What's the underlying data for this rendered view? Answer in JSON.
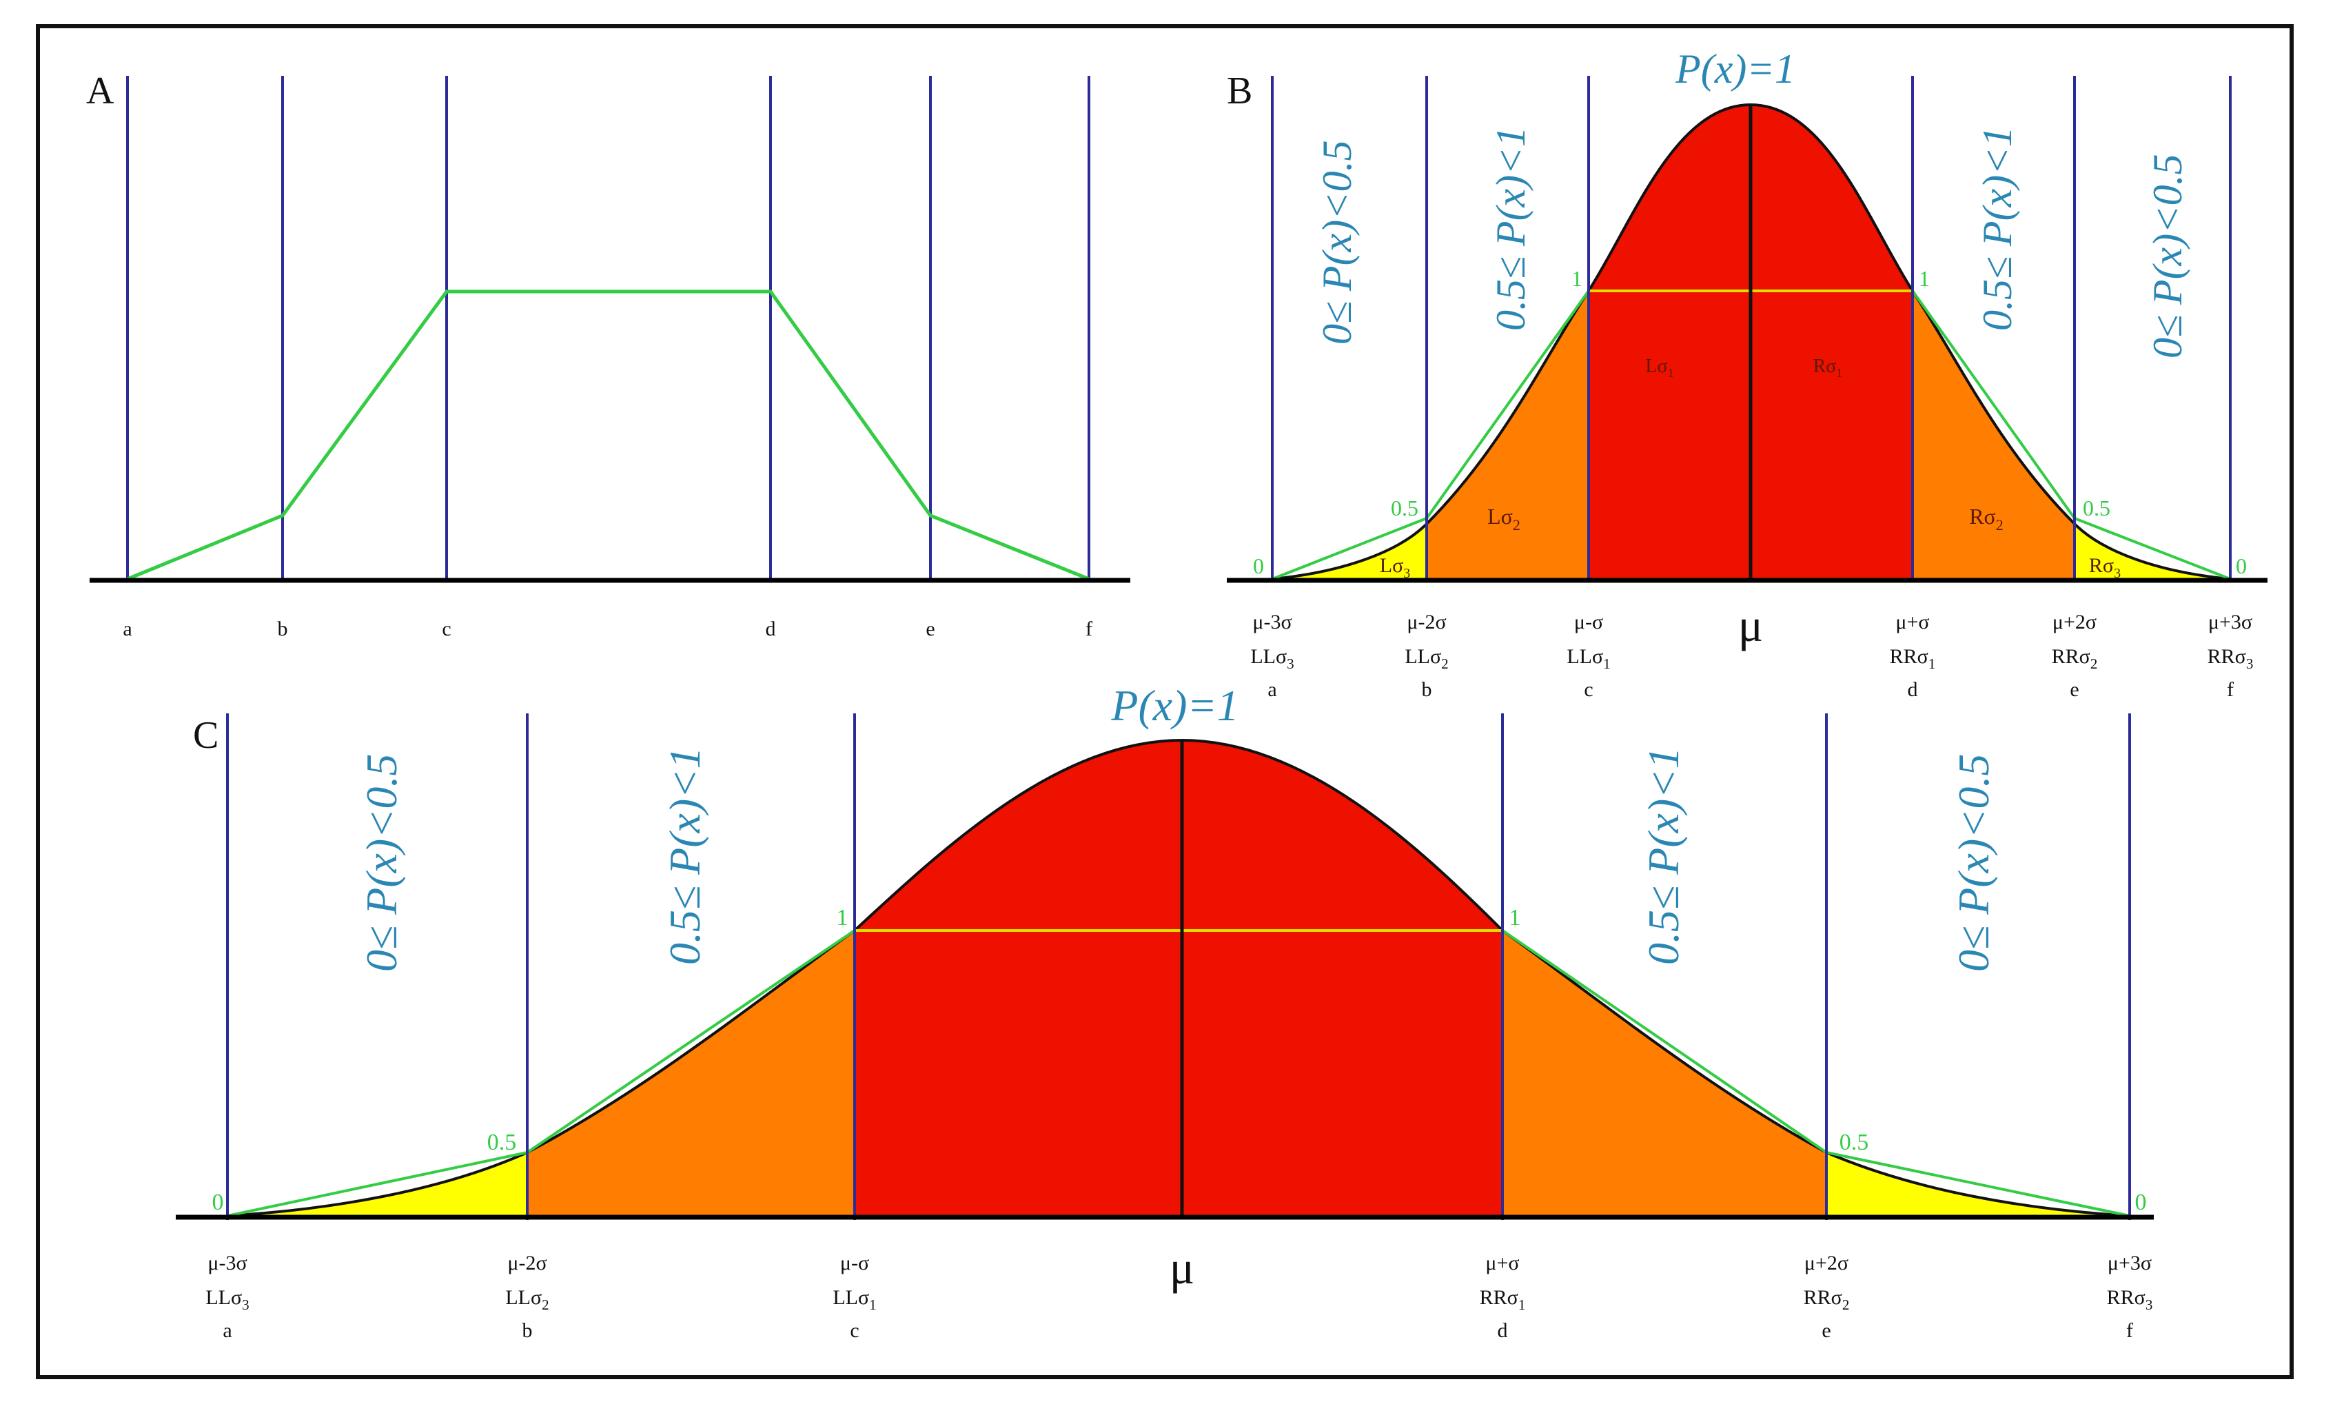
{
  "panels": {
    "A": {
      "letter": "A",
      "ticks": [
        "a",
        "b",
        "c",
        "d",
        "e",
        "f"
      ],
      "membership_profile": [
        0,
        0.14,
        0.6,
        0.6,
        0.14,
        0
      ]
    },
    "B": {
      "letter": "B",
      "mu": "μ",
      "peak_label": "P(x)=1",
      "ticks": [
        {
          "l1": "μ-3σ",
          "l2": "LLσ",
          "s2": "3",
          "l3": "a"
        },
        {
          "l1": "μ-2σ",
          "l2": "LLσ",
          "s2": "2",
          "l3": "b"
        },
        {
          "l1": "μ-σ",
          "l2": "LLσ",
          "s2": "1",
          "l3": "c"
        },
        {
          "l1": "μ+σ",
          "l2": "RRσ",
          "s2": "1",
          "l3": "d"
        },
        {
          "l1": "μ+2σ",
          "l2": "RRσ",
          "s2": "2",
          "l3": "e"
        },
        {
          "l1": "μ+3σ",
          "l2": "RRσ",
          "s2": "3",
          "l3": "f"
        }
      ],
      "band_labels": [
        "0≤ P(x)<0.5",
        "0.5≤ P(x)<1",
        "0.5≤ P(x)<1",
        "0≤ P(x)<0.5"
      ],
      "point_labels": [
        "0",
        "0.5",
        "1",
        "1",
        "0.5",
        "0"
      ],
      "regions": [
        {
          "t": "Lσ",
          "s": "3"
        },
        {
          "t": "Lσ",
          "s": "2"
        },
        {
          "t": "Lσ",
          "s": "1"
        },
        {
          "t": "Rσ",
          "s": "1"
        },
        {
          "t": "Rσ",
          "s": "2"
        },
        {
          "t": "Rσ",
          "s": "3"
        }
      ]
    },
    "C": {
      "letter": "C",
      "mu": "μ",
      "peak_label": "P(x)=1",
      "ticks": [
        {
          "l1": "μ-3σ",
          "l2": "LLσ",
          "s2": "3",
          "l3": "a"
        },
        {
          "l1": "μ-2σ",
          "l2": "LLσ",
          "s2": "2",
          "l3": "b"
        },
        {
          "l1": "μ-σ",
          "l2": "LLσ",
          "s2": "1",
          "l3": "c"
        },
        {
          "l1": "μ+σ",
          "l2": "RRσ",
          "s2": "1",
          "l3": "d"
        },
        {
          "l1": "μ+2σ",
          "l2": "RRσ",
          "s2": "2",
          "l3": "e"
        },
        {
          "l1": "μ+3σ",
          "l2": "RRσ",
          "s2": "3",
          "l3": "f"
        }
      ],
      "band_labels": [
        "0≤ P(x)<0.5",
        "0.5≤ P(x)<1",
        "0.5≤ P(x)<1",
        "0≤ P(x)<0.5"
      ],
      "point_labels": [
        "0",
        "0.5",
        "1",
        "1",
        "0.5",
        "0"
      ]
    }
  },
  "colors": {
    "border": "#111111",
    "vline": "#2b2b9a",
    "axis": "#000000",
    "green": "#33cc44",
    "teal": "#2a87b3",
    "red": "#ee1100",
    "orange": "#ff7d00",
    "yellow": "#ffff00",
    "yellow_line": "#dddd00"
  }
}
